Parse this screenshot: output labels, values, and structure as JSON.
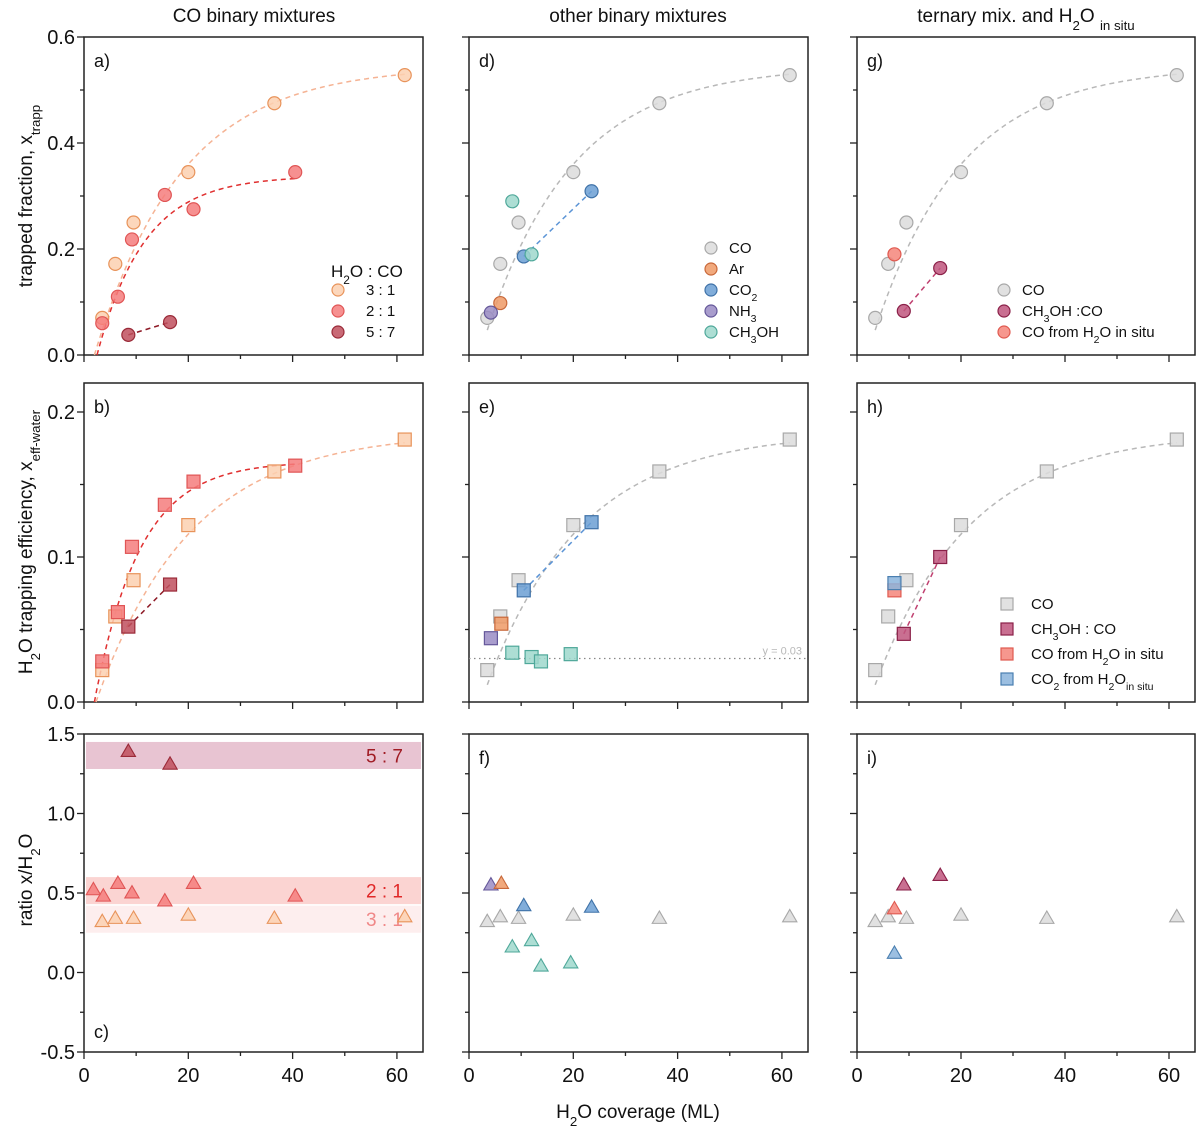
{
  "chart_data": {
    "type": "scatter",
    "layout": "3x3 grid of panels",
    "column_titles": [
      "CO binary mixtures",
      "other binary mixtures",
      "ternary mix. and H2O in situ"
    ],
    "xlabel": "H2O coverage (ML)",
    "xlim": [
      0,
      65
    ],
    "xticks": [
      0,
      20,
      40,
      60
    ],
    "rows": [
      {
        "ylabel": "trapped fraction, x_trapp",
        "ylabel_main": "trapped fraction, x",
        "ylabel_sub": "trapp",
        "ylim": [
          0,
          0.6
        ],
        "yticks": [
          0.0,
          0.2,
          0.4,
          0.6
        ],
        "ytick_labels": [
          "0.0",
          "0.2",
          "0.4",
          "0.6"
        ],
        "marker": "circle"
      },
      {
        "ylabel": "H2O trapping efficiency, x_eff-water",
        "ylabel_main": "O trapping efficiency, x",
        "ylabel_sub": "eff-water",
        "ylim": [
          0,
          0.22
        ],
        "yticks": [
          0.0,
          0.1,
          0.2
        ],
        "ytick_labels": [
          "0.0",
          "0.1",
          "0.2"
        ],
        "marker": "square"
      },
      {
        "ylabel": "ratio x/H2O",
        "ylabel_main": "ratio x/H",
        "ylim": [
          -0.5,
          1.5
        ],
        "yticks": [
          -0.5,
          0.0,
          0.5,
          1.0,
          1.5
        ],
        "ytick_labels": [
          "-0.5",
          "0.0",
          "0.5",
          "1.0",
          "1.5"
        ],
        "marker": "triangle"
      }
    ],
    "series_styles": {
      "co31": {
        "name": "3 : 1",
        "fill": "#fbd0b0",
        "stroke": "#e8935a",
        "line": "#f5b394"
      },
      "co21": {
        "name": "2 : 1",
        "fill": "#f47c7c",
        "stroke": "#e05555",
        "line": "#e03030"
      },
      "co57": {
        "name": "5 : 7",
        "fill": "#c0505e",
        "stroke": "#9a2a38",
        "line": "#8e1a26"
      },
      "CO": {
        "name": "CO",
        "fill": "#dcdcdc",
        "stroke": "#a8a8a8",
        "line": "#b8b8b8"
      },
      "Ar": {
        "name": "Ar",
        "fill": "#ee9a66",
        "stroke": "#c8683a",
        "line": "#e08a55"
      },
      "CO2": {
        "name": "CO2",
        "fill": "#6b9fd4",
        "stroke": "#3f72a8",
        "line": "#5b94d6"
      },
      "NH3": {
        "name": "NH3",
        "fill": "#9a8cc4",
        "stroke": "#65589a",
        "line": "#8070b0"
      },
      "CH3OH": {
        "name": "CH3OH",
        "fill": "#9fd8cc",
        "stroke": "#4fa89a",
        "line": "#6cc0b0"
      },
      "CH3OH_CO": {
        "name": "CH3OH : CO",
        "fill": "#c0567e",
        "stroke": "#8a2048",
        "line": "#c04070"
      },
      "CO_insitu": {
        "name": "CO from H2O in situ",
        "fill": "#f5857a",
        "stroke": "#e05a50",
        "line": "#e05a50"
      },
      "CO2_insitu": {
        "name": "CO2 from H2O in situ",
        "fill": "#8bb4dc",
        "stroke": "#4a7fb0",
        "line": "#4a7fb0"
      }
    },
    "panels": [
      {
        "id": "a",
        "letter": "a)",
        "row": 0,
        "col": 0,
        "legend": {
          "title": "H2O : CO",
          "position": "bottom-right",
          "items": [
            "co31",
            "co21",
            "co57"
          ]
        },
        "series": [
          {
            "style": "co31",
            "x": [
              3.5,
              6,
              9.5,
              20,
              36.5,
              61.5
            ],
            "y": [
              0.07,
              0.172,
              0.25,
              0.345,
              0.475,
              0.528
            ],
            "fit": {
              "type": "exp",
              "a": 0.545,
              "k": 0.06,
              "x0": 2.0
            }
          },
          {
            "style": "co21",
            "x": [
              3.5,
              6.5,
              9.2,
              15.5,
              21,
              40.5
            ],
            "y": [
              0.06,
              0.11,
              0.218,
              0.302,
              0.275,
              0.345
            ],
            "fit": {
              "type": "exp",
              "a": 0.338,
              "k": 0.11,
              "x0": 2.5,
              "xmax": 40.5
            }
          },
          {
            "style": "co57",
            "x": [
              8.5,
              16.5
            ],
            "y": [
              0.038,
              0.062
            ],
            "fit": {
              "type": "line"
            }
          }
        ]
      },
      {
        "id": "b",
        "letter": "b)",
        "row": 1,
        "col": 0,
        "series": [
          {
            "style": "co31",
            "x": [
              3.5,
              6,
              9.5,
              20,
              36.5,
              61.5
            ],
            "y": [
              0.022,
              0.059,
              0.084,
              0.122,
              0.159,
              0.181
            ],
            "fit": {
              "type": "exp",
              "a": 0.186,
              "k": 0.055,
              "x0": 2.3
            }
          },
          {
            "style": "co21",
            "x": [
              3.5,
              6.5,
              9.2,
              15.5,
              21,
              40.5
            ],
            "y": [
              0.028,
              0.062,
              0.107,
              0.136,
              0.152,
              0.163
            ],
            "fit": {
              "type": "exp",
              "a": 0.166,
              "k": 0.115,
              "x0": 2.0,
              "xmax": 40.5
            }
          },
          {
            "style": "co57",
            "x": [
              8.5,
              16.5
            ],
            "y": [
              0.052,
              0.081
            ],
            "fit": {
              "type": "line"
            }
          }
        ]
      },
      {
        "id": "c",
        "letter": "c)",
        "row": 2,
        "col": 0,
        "bands": [
          {
            "label": "5 : 7",
            "y0": 1.28,
            "y1": 1.45,
            "fill": "#e8c4d2",
            "text_color": "#a01c24"
          },
          {
            "label": "2 : 1",
            "y0": 0.43,
            "y1": 0.6,
            "fill": "#fbd4d2",
            "text_color": "#e02828"
          },
          {
            "label": "3 : 1",
            "y0": 0.25,
            "y1": 0.42,
            "fill": "#fdeeee",
            "text_color": "#f08888"
          }
        ],
        "series": [
          {
            "style": "co57",
            "x": [
              8.5,
              16.5
            ],
            "y": [
              1.39,
              1.31
            ]
          },
          {
            "style": "co21",
            "x": [
              1.8,
              3.7,
              6.5,
              9.2,
              15.5,
              21,
              40.5
            ],
            "y": [
              0.52,
              0.48,
              0.56,
              0.5,
              0.45,
              0.56,
              0.48
            ]
          },
          {
            "style": "co31",
            "x": [
              3.5,
              6,
              9.5,
              20,
              36.5,
              61.5
            ],
            "y": [
              0.32,
              0.34,
              0.34,
              0.36,
              0.34,
              0.35
            ]
          }
        ]
      },
      {
        "id": "d",
        "letter": "d)",
        "row": 0,
        "col": 1,
        "legend": {
          "position": "bottom-right",
          "items": [
            "CO",
            "Ar",
            "CO2",
            "NH3",
            "CH3OH"
          ]
        },
        "series": [
          {
            "style": "CO",
            "x": [
              3.5,
              6,
              9.5,
              20,
              36.5,
              61.5
            ],
            "y": [
              0.07,
              0.172,
              0.25,
              0.345,
              0.475,
              0.528
            ],
            "fit": {
              "type": "exp",
              "a": 0.545,
              "k": 0.06,
              "x0": 2.0,
              "xmin": 3.5
            }
          },
          {
            "style": "Ar",
            "x": [
              6
            ],
            "y": [
              0.098
            ]
          },
          {
            "style": "CO2",
            "x": [
              10.5,
              23.5
            ],
            "y": [
              0.186,
              0.309
            ],
            "fit": {
              "type": "line"
            }
          },
          {
            "style": "NH3",
            "x": [
              4.2
            ],
            "y": [
              0.08
            ]
          },
          {
            "style": "CH3OH",
            "x": [
              8.3,
              12
            ],
            "y": [
              0.29,
              0.19
            ]
          }
        ]
      },
      {
        "id": "e",
        "letter": "e)",
        "row": 1,
        "col": 1,
        "hline": {
          "y": 0.03,
          "label": "y = 0.03"
        },
        "series": [
          {
            "style": "CO",
            "x": [
              3.5,
              6,
              9.5,
              20,
              36.5,
              61.5
            ],
            "y": [
              0.022,
              0.059,
              0.084,
              0.122,
              0.159,
              0.181
            ],
            "fit": {
              "type": "exp",
              "a": 0.186,
              "k": 0.055,
              "x0": 2.3,
              "xmin": 3.5
            }
          },
          {
            "style": "Ar",
            "x": [
              6.2
            ],
            "y": [
              0.054
            ]
          },
          {
            "style": "CO2",
            "x": [
              10.5,
              23.5
            ],
            "y": [
              0.077,
              0.124
            ],
            "fit": {
              "type": "line"
            }
          },
          {
            "style": "NH3",
            "x": [
              4.2
            ],
            "y": [
              0.044
            ]
          },
          {
            "style": "CH3OH",
            "x": [
              8.3,
              12,
              13.8,
              19.5
            ],
            "y": [
              0.034,
              0.031,
              0.028,
              0.033
            ]
          }
        ]
      },
      {
        "id": "f",
        "letter": "f)",
        "row": 2,
        "col": 1,
        "series": [
          {
            "style": "CO",
            "x": [
              3.5,
              6,
              9.5,
              20,
              36.5,
              61.5
            ],
            "y": [
              0.32,
              0.35,
              0.34,
              0.36,
              0.34,
              0.35
            ]
          },
          {
            "style": "NH3",
            "x": [
              4.2
            ],
            "y": [
              0.55
            ]
          },
          {
            "style": "Ar",
            "x": [
              6.2
            ],
            "y": [
              0.56
            ]
          },
          {
            "style": "CO2",
            "x": [
              10.5,
              23.5
            ],
            "y": [
              0.42,
              0.41
            ]
          },
          {
            "style": "CH3OH",
            "x": [
              8.3,
              12,
              13.8,
              19.5
            ],
            "y": [
              0.16,
              0.2,
              0.04,
              0.06
            ]
          }
        ]
      },
      {
        "id": "g",
        "letter": "g)",
        "row": 0,
        "col": 2,
        "legend": {
          "position": "bottom-right",
          "items": [
            "CO",
            "CH3OH_CO",
            "CO_insitu"
          ],
          "labels": [
            "CO",
            "CH3OH :CO",
            "CO from H2O in situ"
          ]
        },
        "series": [
          {
            "style": "CO",
            "x": [
              3.5,
              6,
              9.5,
              20,
              36.5,
              61.5
            ],
            "y": [
              0.07,
              0.172,
              0.25,
              0.345,
              0.475,
              0.528
            ],
            "fit": {
              "type": "exp",
              "a": 0.545,
              "k": 0.06,
              "x0": 2.0,
              "xmin": 3.5
            }
          },
          {
            "style": "CO_insitu",
            "x": [
              7.2
            ],
            "y": [
              0.19
            ]
          },
          {
            "style": "CH3OH_CO",
            "x": [
              9,
              16
            ],
            "y": [
              0.083,
              0.164
            ],
            "fit": {
              "type": "line"
            }
          }
        ]
      },
      {
        "id": "h",
        "letter": "h)",
        "row": 1,
        "col": 2,
        "legend": {
          "position": "bottom-right",
          "items": [
            "CO",
            "CH3OH_CO",
            "CO_insitu",
            "CO2_insitu"
          ],
          "labels": [
            "CO",
            "CH3OH : CO",
            "CO from H2O in situ",
            "CO2 from H2O in situ"
          ]
        },
        "series": [
          {
            "style": "CO",
            "x": [
              3.5,
              6,
              9.5,
              20,
              36.5,
              61.5
            ],
            "y": [
              0.022,
              0.059,
              0.084,
              0.122,
              0.159,
              0.181
            ],
            "fit": {
              "type": "exp",
              "a": 0.186,
              "k": 0.055,
              "x0": 2.3,
              "xmin": 3.5
            }
          },
          {
            "style": "CH3OH_CO",
            "x": [
              9,
              16
            ],
            "y": [
              0.047,
              0.1
            ],
            "fit": {
              "type": "line"
            }
          },
          {
            "style": "CO_insitu",
            "x": [
              7.2
            ],
            "y": [
              0.077
            ]
          },
          {
            "style": "CO2_insitu",
            "x": [
              7.2
            ],
            "y": [
              0.082
            ]
          }
        ]
      },
      {
        "id": "i",
        "letter": "i)",
        "row": 2,
        "col": 2,
        "series": [
          {
            "style": "CO",
            "x": [
              3.5,
              6,
              9.5,
              20,
              36.5,
              61.5
            ],
            "y": [
              0.32,
              0.35,
              0.34,
              0.36,
              0.34,
              0.35
            ]
          },
          {
            "style": "CH3OH_CO",
            "x": [
              9,
              16
            ],
            "y": [
              0.55,
              0.61
            ]
          },
          {
            "style": "CO_insitu",
            "x": [
              7.2
            ],
            "y": [
              0.4
            ]
          },
          {
            "style": "CO2_insitu",
            "x": [
              7.2
            ],
            "y": [
              0.12
            ]
          }
        ]
      }
    ]
  }
}
